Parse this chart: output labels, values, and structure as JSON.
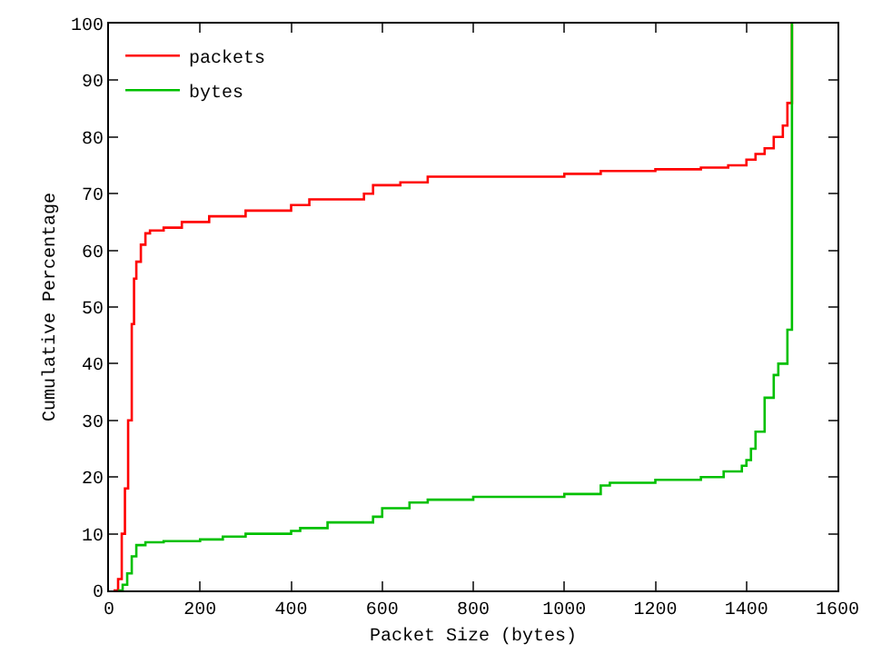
{
  "chart_data": {
    "type": "step",
    "xlabel": "Packet Size (bytes)",
    "ylabel": "Cumulative Percentage",
    "xlim": [
      0,
      1600
    ],
    "ylim": [
      0,
      100
    ],
    "xticks": [
      0,
      200,
      400,
      600,
      800,
      1000,
      1200,
      1400,
      1600
    ],
    "yticks": [
      0,
      10,
      20,
      30,
      40,
      50,
      60,
      70,
      80,
      90,
      100
    ],
    "grid": false,
    "legend": "top left",
    "marker": "none",
    "line_style": "solid",
    "series": [
      {
        "name": "packets",
        "color": "#ff0000",
        "x": [
          10,
          20,
          28,
          35,
          42,
          50,
          55,
          60,
          70,
          80,
          90,
          120,
          160,
          220,
          300,
          400,
          440,
          560,
          580,
          640,
          700,
          800,
          1000,
          1080,
          1200,
          1300,
          1360,
          1400,
          1420,
          1440,
          1460,
          1480,
          1490,
          1500,
          1500
        ],
        "values": [
          0,
          2,
          10,
          18,
          30,
          47,
          55,
          58,
          61,
          63,
          63.5,
          64,
          65,
          66,
          67,
          68,
          69,
          70,
          71.5,
          72,
          73,
          73,
          73.5,
          74,
          74.3,
          74.6,
          75,
          76,
          77,
          78,
          80,
          82,
          86,
          86,
          100
        ]
      },
      {
        "name": "bytes",
        "color": "#00c000",
        "x": [
          20,
          30,
          40,
          50,
          60,
          80,
          120,
          200,
          250,
          300,
          400,
          420,
          480,
          580,
          600,
          660,
          700,
          800,
          1000,
          1080,
          1100,
          1200,
          1300,
          1350,
          1390,
          1400,
          1410,
          1420,
          1440,
          1460,
          1470,
          1490,
          1500,
          1500
        ],
        "values": [
          0,
          1,
          3,
          6,
          8,
          8.5,
          8.7,
          9,
          9.5,
          10,
          10.5,
          11,
          12,
          13,
          14.5,
          15.5,
          16,
          16.5,
          17,
          18.5,
          19,
          19.5,
          20,
          21,
          22,
          23,
          25,
          28,
          34,
          38,
          40,
          46,
          56,
          100
        ]
      }
    ]
  }
}
